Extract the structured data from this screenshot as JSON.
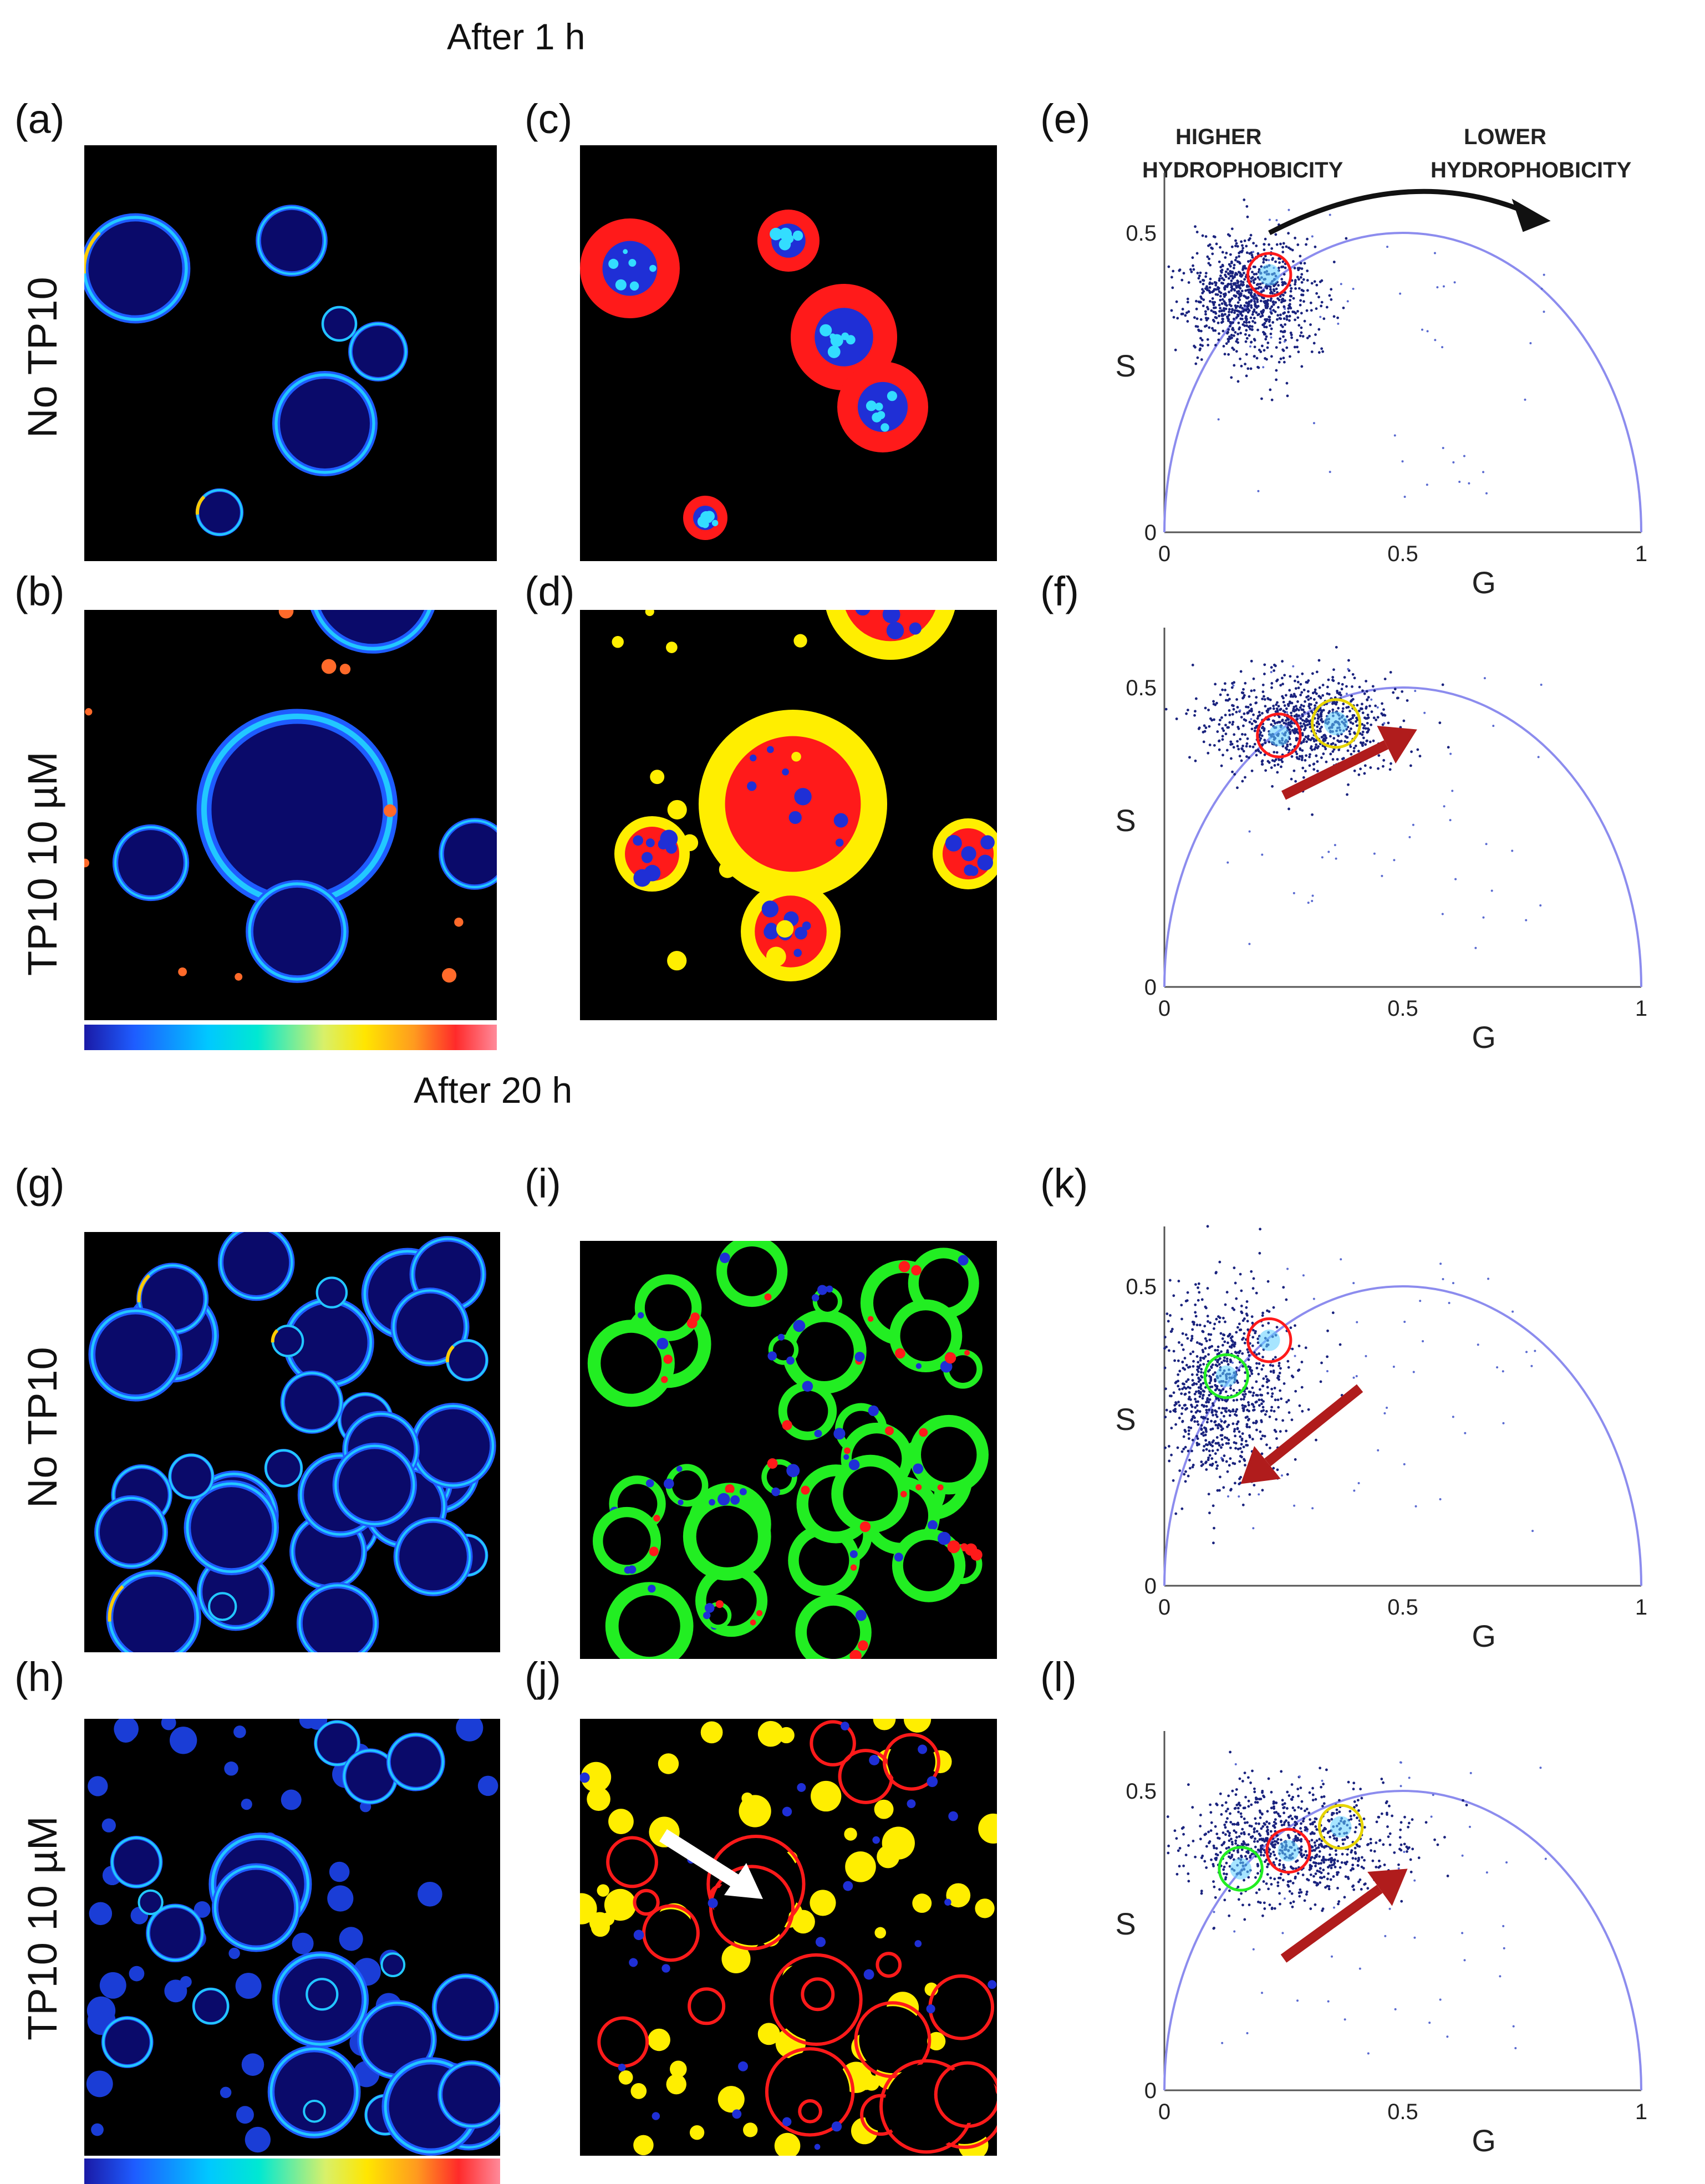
{
  "sections": {
    "early": "After 1 h",
    "late": "After 20 h"
  },
  "row_labels": {
    "a": "No TP10",
    "b": "TP10 10 µM",
    "g": "No TP10",
    "h": "TP10 10 µM"
  },
  "panel_letters": {
    "a": "(a)",
    "b": "(b)",
    "c": "(c)",
    "d": "(d)",
    "e": "(e)",
    "f": "(f)",
    "g": "(g)",
    "h": "(h)",
    "i": "(i)",
    "j": "(j)",
    "k": "(k)",
    "l": "(l)"
  },
  "annotations": {
    "higher": [
      "HIGHER",
      "HYDROPHOBICITY"
    ],
    "lower": [
      "LOWER",
      "HYDROPHOBICITY"
    ]
  },
  "colors": {
    "intensity_colormap": [
      "#1a1aa6",
      "#1e5cff",
      "#00c8ff",
      "#00e8d2",
      "#d8f06a",
      "#ffe600",
      "#ff9a1f",
      "#ff2a2a",
      "#ff8a9a"
    ],
    "cluster_red": "#ff1a1a",
    "cluster_yellow": "#ffee00",
    "cluster_green": "#22ee22",
    "cluster_blue": "#1f2fd6",
    "semicircle": "#8c8cee",
    "points": "#1a237e",
    "arrow_red": "#b01c1c",
    "arrow_black": "#111111"
  },
  "chart_data": [
    {
      "panel": "e",
      "type": "scatter",
      "title": "",
      "xlabel": "G",
      "ylabel": "S",
      "xlim": [
        0,
        1
      ],
      "ylim": [
        0,
        0.6
      ],
      "xticks": [
        "0",
        "0.5",
        "1"
      ],
      "yticks": [
        "0",
        "0.5"
      ],
      "cloud": {
        "center": [
          0.18,
          0.39
        ],
        "spread": [
          0.07,
          0.05
        ]
      },
      "clusters": [
        {
          "color": "red",
          "center": [
            0.22,
            0.43
          ],
          "r": 0.045
        }
      ],
      "arrow": {
        "color": "black",
        "from": [
          0.22,
          0.5
        ],
        "to": [
          0.81,
          0.52
        ],
        "curved": true
      }
    },
    {
      "panel": "f",
      "type": "scatter",
      "title": "",
      "xlabel": "G",
      "ylabel": "S",
      "xlim": [
        0,
        1
      ],
      "ylim": [
        0,
        0.6
      ],
      "xticks": [
        "0",
        "0.5",
        "1"
      ],
      "yticks": [
        "0",
        "0.5"
      ],
      "cloud": {
        "center": [
          0.29,
          0.44
        ],
        "spread": [
          0.1,
          0.04
        ]
      },
      "clusters": [
        {
          "color": "red",
          "center": [
            0.24,
            0.42
          ],
          "r": 0.045
        },
        {
          "color": "yellow",
          "center": [
            0.36,
            0.44
          ],
          "r": 0.05
        }
      ],
      "arrow": {
        "color": "red",
        "from": [
          0.25,
          0.32
        ],
        "to": [
          0.53,
          0.43
        ],
        "curved": false
      }
    },
    {
      "panel": "k",
      "type": "scatter",
      "title": "",
      "xlabel": "G",
      "ylabel": "S",
      "xlim": [
        0,
        1
      ],
      "ylim": [
        0,
        0.6
      ],
      "xticks": [
        "0",
        "0.5",
        "1"
      ],
      "yticks": [
        "0",
        "0.5"
      ],
      "cloud": {
        "center": [
          0.12,
          0.33
        ],
        "spread": [
          0.07,
          0.08
        ]
      },
      "clusters": [
        {
          "color": "green",
          "center": [
            0.13,
            0.35
          ],
          "r": 0.045
        },
        {
          "color": "red",
          "center": [
            0.22,
            0.41
          ],
          "r": 0.045
        }
      ],
      "arrow": {
        "color": "red",
        "from": [
          0.41,
          0.33
        ],
        "to": [
          0.16,
          0.17
        ],
        "curved": false
      }
    },
    {
      "panel": "l",
      "type": "scatter",
      "title": "",
      "xlabel": "G",
      "ylabel": "S",
      "xlim": [
        0,
        1
      ],
      "ylim": [
        0,
        0.6
      ],
      "xticks": [
        "0",
        "0.5",
        "1"
      ],
      "yticks": [
        "0",
        "0.5"
      ],
      "cloud": {
        "center": [
          0.27,
          0.41
        ],
        "spread": [
          0.11,
          0.045
        ]
      },
      "clusters": [
        {
          "color": "green",
          "center": [
            0.16,
            0.37
          ],
          "r": 0.045
        },
        {
          "color": "red",
          "center": [
            0.26,
            0.4
          ],
          "r": 0.045
        },
        {
          "color": "yellow",
          "center": [
            0.37,
            0.44
          ],
          "r": 0.045
        }
      ],
      "arrow": {
        "color": "red",
        "from": [
          0.25,
          0.22
        ],
        "to": [
          0.51,
          0.37
        ],
        "curved": false
      }
    }
  ]
}
